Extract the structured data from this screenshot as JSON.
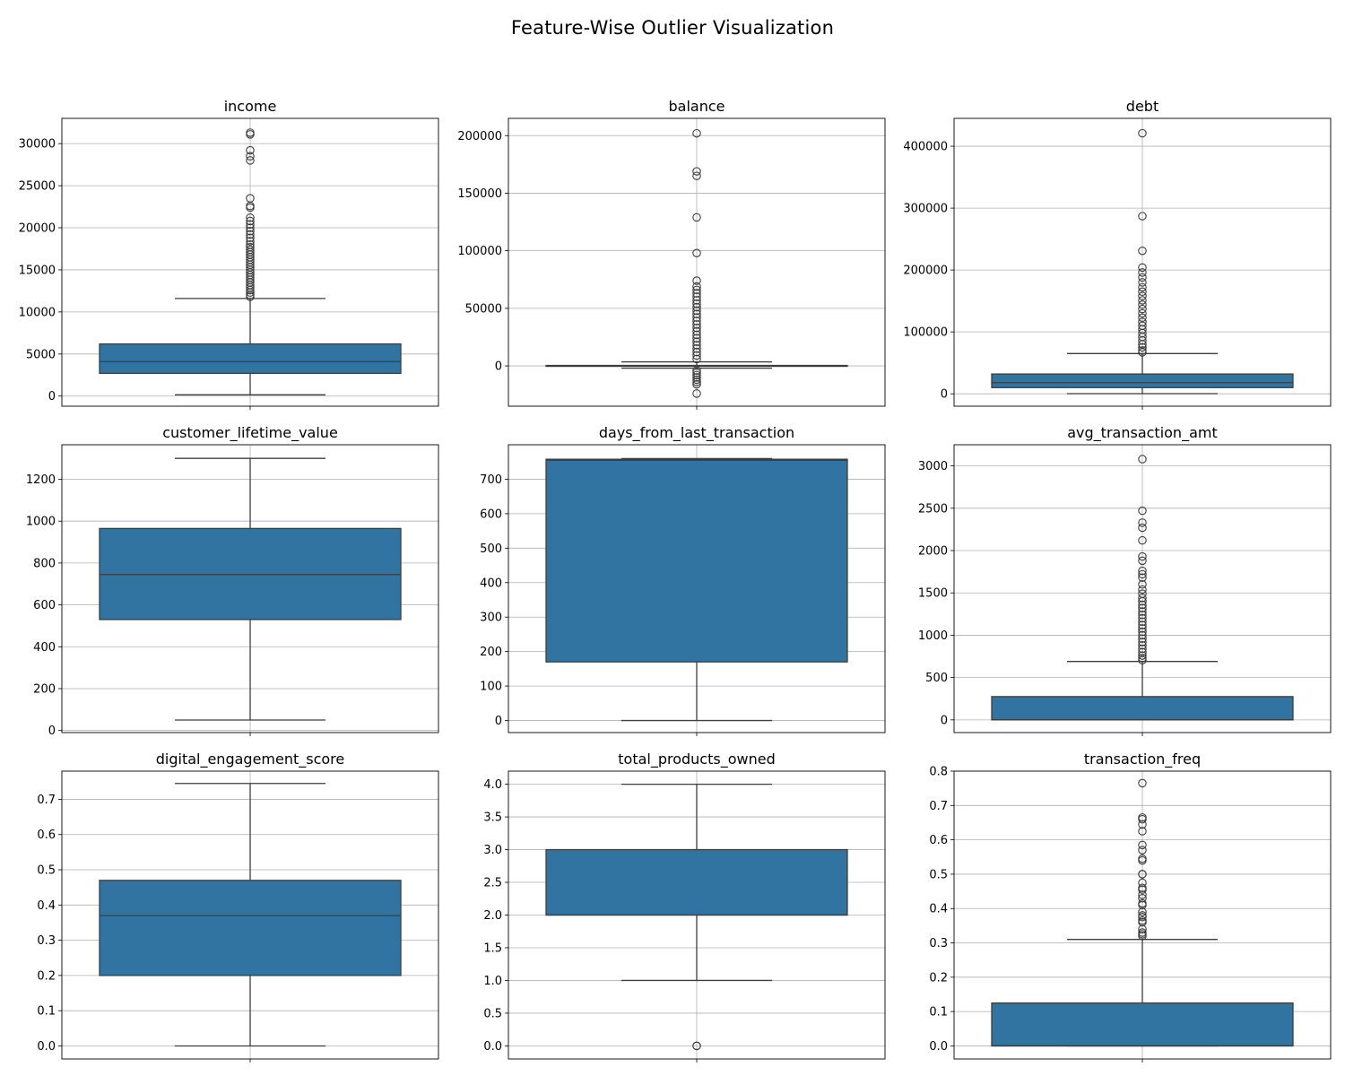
{
  "figure": {
    "title": "Feature-Wise Outlier Visualization"
  },
  "colors": {
    "box_fill": "#3274a1",
    "line": "#3d3d3d",
    "grid": "#b0b0b0",
    "axes": "#000000"
  },
  "chart_data": [
    {
      "type": "box",
      "title": "income",
      "ylim": [
        -1200,
        33000
      ],
      "grid": true,
      "yticks": [
        0,
        5000,
        10000,
        15000,
        20000,
        25000,
        30000
      ],
      "box": {
        "whislo": 150,
        "q1": 2700,
        "med": 4100,
        "q3": 6200,
        "whishi": 11600
      },
      "outliers": [
        31300,
        31100,
        29200,
        28500,
        28000,
        23500,
        22600,
        22400,
        21200,
        20800,
        20400,
        20000,
        19600,
        19200,
        18800,
        18400,
        18000,
        17700,
        17400,
        17100,
        16800,
        16500,
        16200,
        15900,
        15600,
        15300,
        15000,
        14700,
        14400,
        14100,
        13800,
        13500,
        13200,
        12900,
        12600,
        12300,
        12000,
        11800
      ]
    },
    {
      "type": "box",
      "title": "balance",
      "ylim": [
        -35000,
        215000
      ],
      "grid": true,
      "yticks": [
        0,
        50000,
        100000,
        150000,
        200000
      ],
      "box": {
        "whislo": -2000,
        "q1": -100,
        "med": 100,
        "q3": 400,
        "whishi": 3500
      },
      "outliers": [
        202000,
        169000,
        165000,
        129000,
        98000,
        74000,
        69000,
        66000,
        63000,
        60000,
        57000,
        54000,
        51000,
        48000,
        45000,
        42000,
        39000,
        36000,
        33000,
        30000,
        27000,
        24000,
        21000,
        18000,
        15000,
        12000,
        9000,
        6000,
        -4000,
        -6000,
        -8000,
        -10000,
        -12000,
        -14000,
        -16000,
        -24000
      ]
    },
    {
      "type": "box",
      "title": "debt",
      "ylim": [
        -20000,
        445000
      ],
      "grid": true,
      "yticks": [
        0,
        100000,
        200000,
        300000,
        400000
      ],
      "box": {
        "whislo": 300,
        "q1": 10000,
        "med": 18000,
        "q3": 32000,
        "whishi": 65000
      },
      "outliers": [
        421000,
        287000,
        231000,
        204000,
        196000,
        188000,
        180000,
        172000,
        165000,
        158000,
        151000,
        144000,
        137000,
        130000,
        123000,
        116000,
        110000,
        104000,
        98000,
        92000,
        86000,
        80000,
        75000,
        70000,
        67000
      ]
    },
    {
      "type": "box",
      "title": "customer_lifetime_value",
      "ylim": [
        -10,
        1365
      ],
      "grid": true,
      "yticks": [
        0,
        200,
        400,
        600,
        800,
        1000,
        1200
      ],
      "box": {
        "whislo": 50,
        "q1": 530,
        "med": 745,
        "q3": 965,
        "whishi": 1300
      },
      "outliers": []
    },
    {
      "type": "box",
      "title": "days_from_last_transaction",
      "ylim": [
        -35,
        800
      ],
      "grid": true,
      "yticks": [
        0,
        100,
        200,
        300,
        400,
        500,
        600,
        700
      ],
      "box": {
        "whislo": 0,
        "q1": 170,
        "med": 755,
        "q3": 758,
        "whishi": 760
      },
      "outliers": []
    },
    {
      "type": "box",
      "title": "avg_transaction_amt",
      "ylim": [
        -150,
        3250
      ],
      "grid": true,
      "yticks": [
        0,
        500,
        1000,
        1500,
        2000,
        2500,
        3000
      ],
      "box": {
        "whislo": 0,
        "q1": 0,
        "med": 2,
        "q3": 275,
        "whishi": 690
      },
      "outliers": [
        3080,
        2470,
        2330,
        2270,
        2120,
        1930,
        1880,
        1760,
        1720,
        1680,
        1600,
        1540,
        1490,
        1440,
        1400,
        1360,
        1320,
        1280,
        1240,
        1200,
        1160,
        1120,
        1080,
        1040,
        1000,
        960,
        920,
        880,
        840,
        800,
        760,
        730,
        705
      ]
    },
    {
      "type": "box",
      "title": "digital_engagement_score",
      "ylim": [
        -0.037,
        0.78
      ],
      "grid": true,
      "yticks": [
        0.0,
        0.1,
        0.2,
        0.3,
        0.4,
        0.5,
        0.6,
        0.7
      ],
      "box": {
        "whislo": 0.0,
        "q1": 0.2,
        "med": 0.37,
        "q3": 0.47,
        "whishi": 0.745
      },
      "outliers": []
    },
    {
      "type": "box",
      "title": "total_products_owned",
      "ylim": [
        -0.2,
        4.2
      ],
      "grid": true,
      "yticks": [
        0.0,
        0.5,
        1.0,
        1.5,
        2.0,
        2.5,
        3.0,
        3.5,
        4.0
      ],
      "box": {
        "whislo": 1.0,
        "q1": 2.0,
        "med": 2.0,
        "q3": 3.0,
        "whishi": 4.0
      },
      "outliers": [
        0.0,
        0.0
      ]
    },
    {
      "type": "box",
      "title": "transaction_freq",
      "ylim": [
        -0.038,
        0.8
      ],
      "grid": true,
      "yticks": [
        0.0,
        0.1,
        0.2,
        0.3,
        0.4,
        0.5,
        0.6,
        0.7,
        0.8
      ],
      "box": {
        "whislo": 0.0,
        "q1": 0.0,
        "med": 0.0,
        "q3": 0.125,
        "whishi": 0.31
      },
      "outliers": [
        0.765,
        0.665,
        0.66,
        0.645,
        0.625,
        0.585,
        0.57,
        0.545,
        0.54,
        0.5,
        0.5,
        0.475,
        0.46,
        0.455,
        0.44,
        0.43,
        0.415,
        0.41,
        0.39,
        0.38,
        0.375,
        0.365,
        0.36,
        0.34,
        0.33,
        0.325,
        0.32
      ]
    }
  ]
}
